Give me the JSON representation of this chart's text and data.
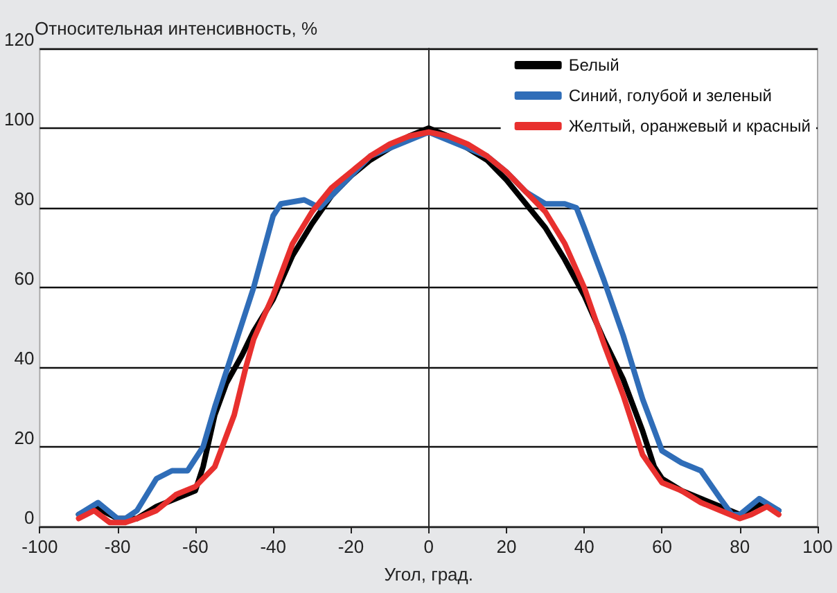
{
  "chart_data": {
    "type": "line",
    "xlabel": "Угол, град.",
    "ylabel": "Относительная интенсивность, %",
    "xlim": [
      -100,
      100
    ],
    "xticks": [
      -100,
      -80,
      -60,
      -40,
      -20,
      0,
      20,
      40,
      60,
      80,
      100
    ],
    "ylim": [
      0,
      120
    ],
    "yticks": [
      0,
      20,
      40,
      60,
      80,
      100,
      120
    ],
    "grid": "y",
    "legend": "top right",
    "marker": "none",
    "line_style": "solid",
    "series": [
      {
        "name": "Белый",
        "color": "#000000",
        "x": [
          -90,
          -86,
          -80,
          -75,
          -70,
          -65,
          -60,
          -58,
          -55,
          -52,
          -48,
          -45,
          -40,
          -35,
          -30,
          -25,
          -20,
          -15,
          -10,
          -5,
          0,
          5,
          10,
          15,
          20,
          25,
          30,
          35,
          40,
          45,
          50,
          55,
          58,
          60,
          65,
          70,
          75,
          80,
          86,
          90
        ],
        "values": [
          3,
          5,
          2,
          2,
          5,
          7,
          9,
          15,
          28,
          36,
          43,
          49,
          57,
          68,
          76,
          83,
          88,
          92,
          95,
          98,
          100,
          98,
          95,
          92,
          87,
          81,
          75,
          67,
          58,
          47,
          37,
          24,
          15,
          12,
          9,
          7,
          5,
          3,
          6,
          4
        ]
      },
      {
        "name": "Синий, голубой и зеленый",
        "color": "#2f6db8",
        "x": [
          -90,
          -85,
          -80,
          -78,
          -75,
          -70,
          -66,
          -62,
          -58,
          -55,
          -50,
          -45,
          -40,
          -38,
          -32,
          -28,
          -25,
          -20,
          -15,
          -10,
          -5,
          0,
          5,
          10,
          15,
          20,
          25,
          30,
          35,
          38,
          40,
          45,
          50,
          55,
          60,
          65,
          70,
          75,
          78,
          80,
          85,
          90
        ],
        "values": [
          3,
          6,
          2,
          2,
          4,
          12,
          14,
          14,
          20,
          30,
          45,
          60,
          78,
          81,
          82,
          80,
          83,
          88,
          93,
          95,
          97,
          99,
          97,
          95,
          93,
          89,
          84,
          81,
          81,
          80,
          75,
          62,
          48,
          32,
          19,
          16,
          14,
          7,
          3,
          3,
          7,
          4
        ]
      },
      {
        "name": "Желтый, оранжевый и красный",
        "color": "#e8302e",
        "x": [
          -90,
          -86,
          -82,
          -78,
          -75,
          -70,
          -65,
          -60,
          -55,
          -50,
          -47,
          -45,
          -40,
          -35,
          -30,
          -25,
          -20,
          -15,
          -10,
          -5,
          0,
          5,
          10,
          15,
          20,
          25,
          30,
          35,
          40,
          45,
          50,
          55,
          60,
          65,
          70,
          75,
          80,
          83,
          87,
          90
        ],
        "values": [
          2,
          4,
          1,
          1,
          2,
          4,
          8,
          10,
          15,
          28,
          40,
          47,
          58,
          71,
          79,
          85,
          89,
          93,
          96,
          98,
          99,
          98,
          96,
          93,
          89,
          84,
          79,
          71,
          60,
          46,
          33,
          18,
          11,
          9,
          6,
          4,
          2,
          3,
          5,
          3
        ]
      }
    ]
  }
}
